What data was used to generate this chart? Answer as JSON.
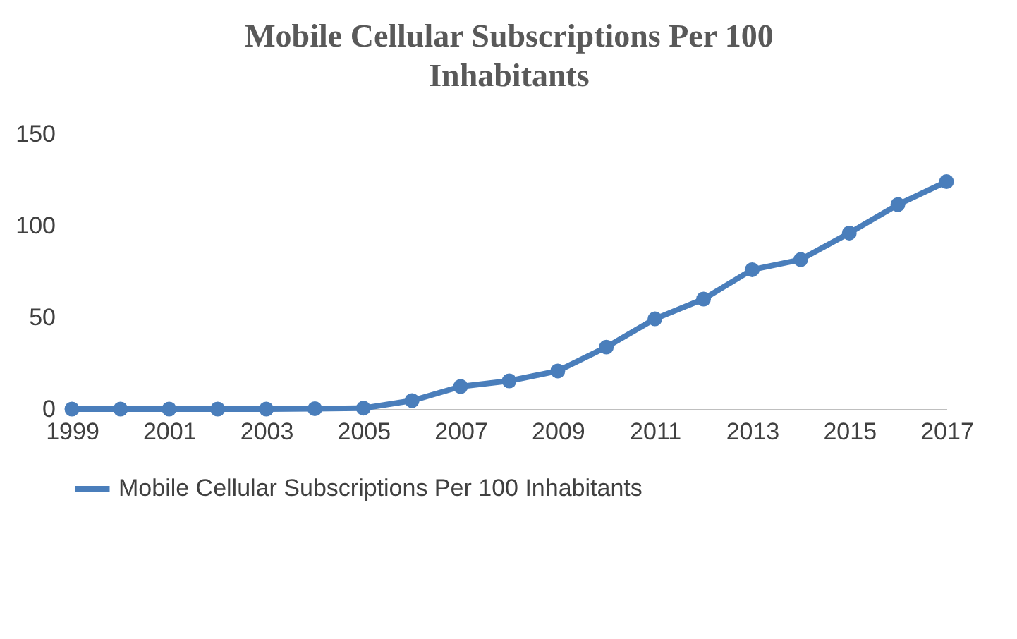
{
  "chart_data": {
    "type": "line",
    "title": "Mobile Cellular Subscriptions Per 100 Inhabitants",
    "x": [
      1999,
      2000,
      2001,
      2002,
      2003,
      2004,
      2005,
      2006,
      2007,
      2008,
      2009,
      2010,
      2011,
      2012,
      2013,
      2014,
      2015,
      2016,
      2017
    ],
    "series": [
      {
        "name": "Mobile Cellular Subscriptions Per 100 Inhabitants",
        "color": "#4a7ebb",
        "values": [
          0,
          0,
          0,
          0,
          0,
          0.2,
          0.5,
          4.6,
          12.3,
          15.4,
          20.8,
          33.8,
          49.2,
          60,
          76,
          81.5,
          96,
          111.5,
          124
        ]
      }
    ],
    "xlim": [
      1999,
      2017
    ],
    "xticks": [
      1999,
      2001,
      2003,
      2005,
      2007,
      2009,
      2011,
      2013,
      2015,
      2017
    ],
    "ylim": [
      0,
      150
    ],
    "yticks": [
      0,
      50,
      100,
      150
    ],
    "grid": false,
    "legend": "bottom",
    "marker": "circle",
    "line_style": "solid"
  }
}
